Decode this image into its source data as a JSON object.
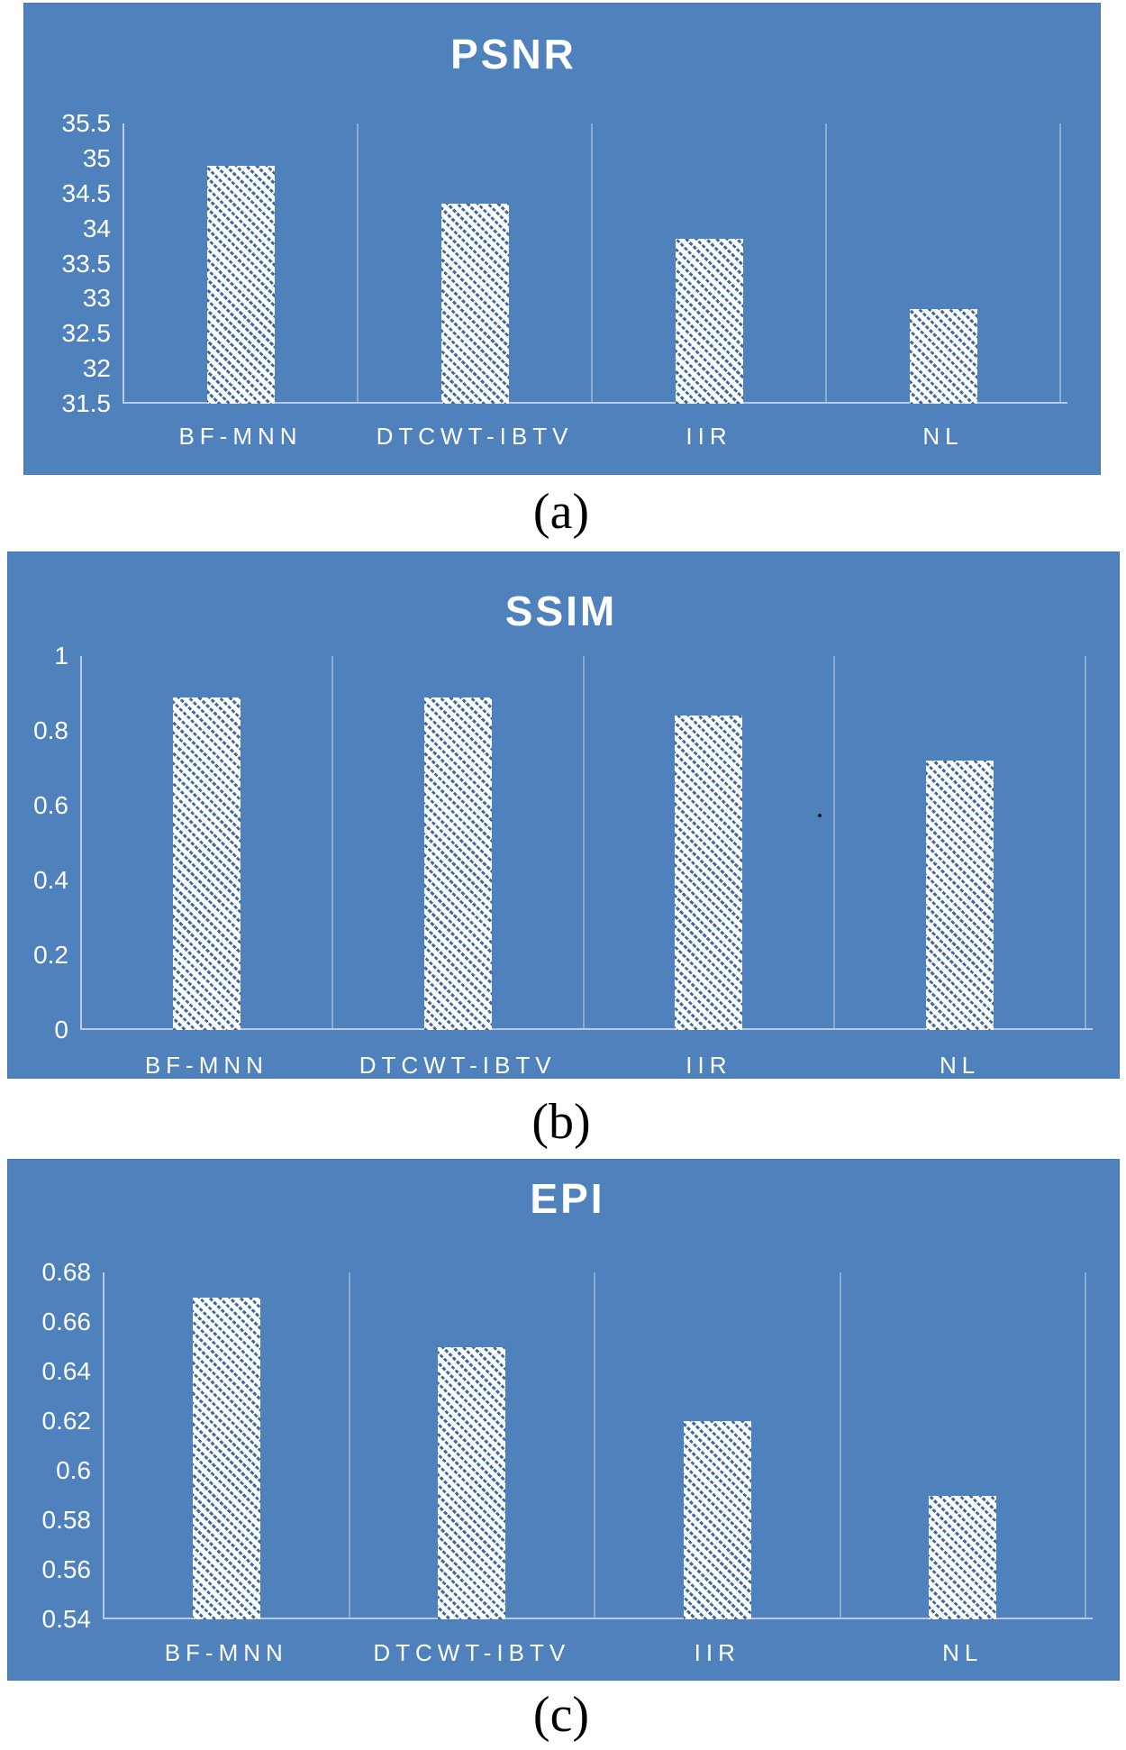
{
  "figure": {
    "description": "Three stacked bar charts comparing denoising methods",
    "captions": [
      "(a)",
      "(b)",
      "(c)"
    ]
  },
  "colors": {
    "panel_background": "#4f81bd",
    "bar_fill": "#ffffff",
    "bar_hatch": "#41699f",
    "gridline": "#8fa9cf",
    "axis_line": "#bcc9e2",
    "tick_text": "#ffffff",
    "title_text": "#ffffff",
    "caption_text": "#000000"
  },
  "chart_data": [
    {
      "type": "bar",
      "title": "PSNR",
      "caption": "(a)",
      "categories": [
        "BF-MNN",
        "DTCWT-IBTV",
        "IIR",
        "NL"
      ],
      "values": [
        34.9,
        34.35,
        33.85,
        32.85
      ],
      "ylim": [
        31.5,
        35.5
      ],
      "ystep": 0.5,
      "ytick_labels": [
        "35.5",
        "35",
        "34.5",
        "34",
        "33.5",
        "33",
        "32.5",
        "32",
        "31.5"
      ],
      "xlabel": "",
      "ylabel": "",
      "grid": "vertical category divider lines, no horizontal gridlines",
      "legend": "none",
      "bar_style": "white with blue diagonal hatch on solid blue panel"
    },
    {
      "type": "bar",
      "title": "SSIM",
      "caption": "(b)",
      "categories": [
        "BF-MNN",
        "DTCWT-IBTV",
        "IIR",
        "NL"
      ],
      "values": [
        0.89,
        0.89,
        0.84,
        0.72
      ],
      "ylim": [
        0,
        1
      ],
      "ystep": 0.2,
      "ytick_labels": [
        "1",
        "0.8",
        "0.6",
        "0.4",
        "0.2",
        "0"
      ],
      "xlabel": "",
      "ylabel": "",
      "grid": "vertical category divider lines, no horizontal gridlines",
      "legend": "none",
      "bar_style": "white with blue diagonal hatch on solid blue panel"
    },
    {
      "type": "bar",
      "title": "EPI",
      "caption": "(c)",
      "categories": [
        "BF-MNN",
        "DTCWT-IBTV",
        "IIR",
        "NL"
      ],
      "values": [
        0.67,
        0.65,
        0.62,
        0.59
      ],
      "ylim": [
        0.54,
        0.68
      ],
      "ystep": 0.02,
      "ytick_labels": [
        "0.68",
        "0.66",
        "0.64",
        "0.62",
        "0.6",
        "0.58",
        "0.56",
        "0.54"
      ],
      "xlabel": "",
      "ylabel": "",
      "grid": "vertical category divider lines, no horizontal gridlines",
      "legend": "none",
      "bar_style": "white with blue diagonal hatch on solid blue panel"
    }
  ]
}
